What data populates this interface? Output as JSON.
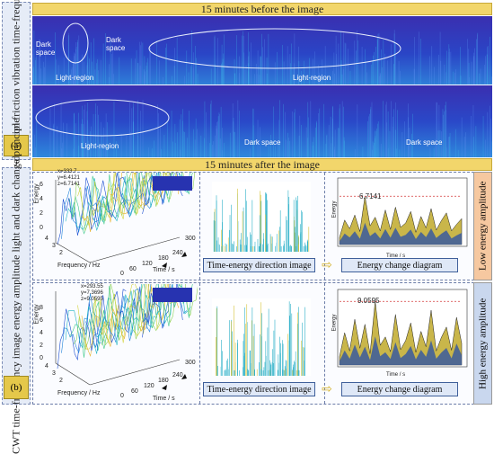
{
  "side_labels": {
    "a_title": "Full-time y-direction friction vibration time-frequency image",
    "a_tag": "(a)",
    "b_title": "CWT time-frequency image energy amplitude light and dark change principle",
    "b_tag": "(b)"
  },
  "banners": {
    "before": "15 minutes before the image",
    "after": "15 minutes after the image"
  },
  "spectrogram_top": {
    "dark_space_1": "Dark space",
    "light_region_1": "Light-region",
    "dark_space_2": "Dark space",
    "light_region_2": "Light-region"
  },
  "spectrogram_bottom": {
    "light_region": "Light-region",
    "dark_space_1": "Dark space",
    "dark_space_2": "Dark space"
  },
  "row_low": {
    "amp_label": "Low energy amplitude",
    "peak_value": "6.7141",
    "annotation": [
      "x=333.7",
      "y=6.4121",
      "z=6.7141"
    ],
    "frequency_label": "Frequency / Hz",
    "time_label": "Time / s",
    "energy_label": "Energy",
    "time_ticks": [
      "0",
      "60",
      "120",
      "180",
      "240",
      "300"
    ],
    "energy_ticks": [
      "6",
      "4",
      "2",
      "0"
    ],
    "freq_ticks": [
      "4",
      "3",
      "2"
    ],
    "direction_image_label": "Time-energy direction image",
    "change_diagram_label": "Energy change diagram",
    "series": [
      1.0,
      3.4,
      2.2,
      4.1,
      1.8,
      6.71,
      2.6,
      3.8,
      1.9,
      4.8,
      2.1,
      5.2,
      2.4,
      3.0,
      4.6,
      1.7,
      3.9,
      2.3,
      5.0,
      2.0,
      3.3,
      4.4,
      1.9,
      2.8,
      3.6
    ]
  },
  "row_high": {
    "amp_label": "High energy amplitude",
    "peak_value": "9.0595",
    "annotation": [
      "x=293.55",
      "y=7.3696",
      "z=9.0595"
    ],
    "frequency_label": "Frequency / Hz",
    "time_label": "Time / s",
    "energy_label": "Energy",
    "time_ticks": [
      "0",
      "60",
      "120",
      "180",
      "240",
      "300"
    ],
    "energy_ticks": [
      "8",
      "6",
      "4",
      "2",
      "0"
    ],
    "freq_ticks": [
      "4",
      "3",
      "2"
    ],
    "direction_image_label": "Time-energy direction image",
    "change_diagram_label": "Energy change diagram",
    "series": [
      1.2,
      4.6,
      2.0,
      6.5,
      2.4,
      5.8,
      1.6,
      9.06,
      2.8,
      4.0,
      1.9,
      7.2,
      2.2,
      3.5,
      6.0,
      1.8,
      4.8,
      2.6,
      7.8,
      2.0,
      3.9,
      5.4,
      2.1,
      6.8,
      3.1
    ]
  },
  "colors": {
    "spectrogram_base": "#2233b8",
    "spectrogram_light": "#38b4e8",
    "fill_yellow": "#c9b64a",
    "fill_blue": "#3a5a9e",
    "peak_line": "#d23b3b",
    "banner": "#f2d66b"
  }
}
